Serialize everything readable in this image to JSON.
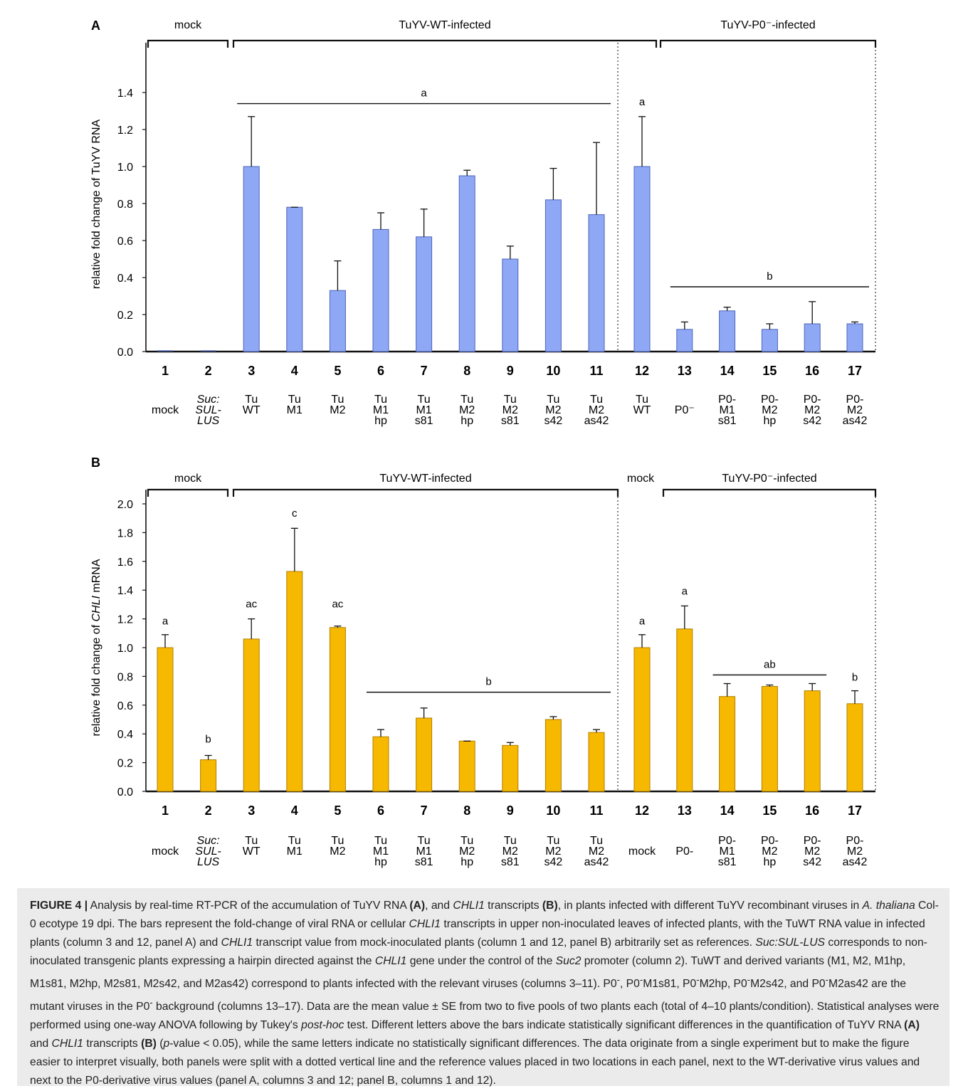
{
  "caption": {
    "html": "<b>FIGURE 4 |</b> Analysis by real-time RT-PCR of the accumulation of TuYV RNA <b>(A)</b>, and <i>CHLI1</i> transcripts <b>(B)</b>, in plants infected with different TuYV recombinant viruses in <i>A. thaliana</i> Col-0 ecotype 19 dpi. The bars represent the fold-change of viral RNA or cellular <i>CHLI1</i> transcripts in upper non-inoculated leaves of infected plants, with the TuWT RNA value in infected plants (column 3 and 12, panel A) and <i>CHLI1</i> transcript value from mock-inoculated plants (column 1 and 12, panel B) arbitrarily set as references. <i>Suc:SUL-LUS</i> corresponds to non-inoculated transgenic plants expressing a hairpin directed against the <i>CHLI1</i> gene under the control of the <i>Suc2</i> promoter (column 2). TuWT and derived variants (M1, M2, M1hp, M1s81, M2hp, M2s81, M2s42, and M2as42) correspond to plants infected with the relevant viruses (columns 3–11). P0<sup>-</sup>, P0<sup>-</sup>M1s81, P0<sup>-</sup>M2hp, P0<sup>-</sup>M2s42, and P0<sup>-</sup>M2as42 are the mutant viruses in the P0<sup>-</sup> background (columns 13–17). Data are the mean value ± SE from two to five pools of two plants each (total of 4–10 plants/condition). Statistical analyses were performed using one-way ANOVA following by Tukey's <i>post-hoc</i> test. Different letters above the bars indicate statistically significant differences in the quantification of TuYV RNA <b>(A)</b> and <i>CHLI1</i> transcripts <b>(B)</b> (<i>p</i>-value &lt; 0.05), while the same letters indicate no statistically significant differences. The data originate from a single experiment but to make the figure easier to interpret visually, both panels were split with a dotted vertical line and the reference values placed in two locations in each panel, next to the WT-derivative virus values and next to the P0-derivative virus values (panel A, columns 3 and 12; panel B, columns 1 and 12)."
  },
  "chart_data": [
    {
      "panel": "A",
      "type": "bar",
      "ylabel": "relative fold change of TuYV RNA",
      "ylim": [
        0,
        1.6
      ],
      "yticks": [
        "0.0",
        "0.2",
        "0.4",
        "0.6",
        "0.8",
        "1.0",
        "1.2",
        "1.4"
      ],
      "bar_color": "#8fa8f5",
      "bar_stroke": "#4d64b8",
      "numbers": [
        "1",
        "2",
        "3",
        "4",
        "5",
        "6",
        "7",
        "8",
        "9",
        "10",
        "11",
        "12",
        "13",
        "14",
        "15",
        "16",
        "17"
      ],
      "labels": [
        [
          "mock"
        ],
        [
          "Suc:",
          "SUL-",
          "LUS"
        ],
        [
          "Tu",
          "WT"
        ],
        [
          "Tu",
          "M1"
        ],
        [
          "Tu",
          "M2"
        ],
        [
          "Tu",
          "M1",
          "hp"
        ],
        [
          "Tu",
          "M1",
          "s81"
        ],
        [
          "Tu",
          "M2",
          "hp"
        ],
        [
          "Tu",
          "M2",
          "s81"
        ],
        [
          "Tu",
          "M2",
          "s42"
        ],
        [
          "Tu",
          "M2",
          "as42"
        ],
        [
          "Tu",
          "WT"
        ],
        [
          "P0⁻"
        ],
        [
          "P0-",
          "M1",
          "s81"
        ],
        [
          "P0-",
          "M2",
          "hp"
        ],
        [
          "P0-",
          "M2",
          "s42"
        ],
        [
          "P0-",
          "M2",
          "as42"
        ]
      ],
      "values": [
        0.0,
        0.0,
        1.0,
        0.78,
        0.33,
        0.66,
        0.62,
        0.95,
        0.5,
        0.82,
        0.74,
        1.0,
        0.12,
        0.22,
        0.12,
        0.15,
        0.15
      ],
      "errors": [
        0.0,
        0.0,
        0.27,
        0.0,
        0.16,
        0.09,
        0.15,
        0.03,
        0.07,
        0.17,
        0.39,
        0.27,
        0.04,
        0.02,
        0.03,
        0.12,
        0.01
      ],
      "groups": [
        {
          "label": "mock",
          "from": 1,
          "to": 2
        },
        {
          "label": "TuYV-WT-infected",
          "from": 3,
          "to": 11
        },
        {
          "label": "TuYV-P0⁻-infected",
          "from": 13,
          "to": 17
        }
      ],
      "significance": [
        {
          "letter": "a",
          "from": 3,
          "to": 11,
          "y": 1.34
        },
        {
          "letter": "a",
          "from": 12,
          "to": 12,
          "y": 1.33
        },
        {
          "letter": "b",
          "from": 13,
          "to": 17,
          "y": 0.35
        }
      ]
    },
    {
      "panel": "B",
      "type": "bar",
      "ylabel": "relative fold change of CHLI mRNA",
      "ylim": [
        0,
        2.0
      ],
      "yticks": [
        "0.0",
        "0.2",
        "0.4",
        "0.6",
        "0.8",
        "1.0",
        "1.2",
        "1.4",
        "1.6",
        "1.8",
        "2.0"
      ],
      "bar_color": "#f7b800",
      "bar_stroke": "#b07f00",
      "numbers": [
        "1",
        "2",
        "3",
        "4",
        "5",
        "6",
        "7",
        "8",
        "9",
        "10",
        "11",
        "12",
        "13",
        "14",
        "15",
        "16",
        "17"
      ],
      "labels": [
        [
          "mock"
        ],
        [
          "Suc:",
          "SUL-",
          "LUS"
        ],
        [
          "Tu",
          "WT"
        ],
        [
          "Tu",
          "M1"
        ],
        [
          "Tu",
          "M2"
        ],
        [
          "Tu",
          "M1",
          "hp"
        ],
        [
          "Tu",
          "M1",
          "s81"
        ],
        [
          "Tu",
          "M2",
          "hp"
        ],
        [
          "Tu",
          "M2",
          "s81"
        ],
        [
          "Tu",
          "M2",
          "s42"
        ],
        [
          "Tu",
          "M2",
          "as42"
        ],
        [
          "mock"
        ],
        [
          "P0-"
        ],
        [
          "P0-",
          "M1",
          "s81"
        ],
        [
          "P0-",
          "M2",
          "hp"
        ],
        [
          "P0-",
          "M2",
          "s42"
        ],
        [
          "P0-",
          "M2",
          "as42"
        ]
      ],
      "values": [
        1.0,
        0.22,
        1.06,
        1.53,
        1.14,
        0.38,
        0.51,
        0.35,
        0.32,
        0.5,
        0.41,
        1.0,
        1.13,
        0.66,
        0.73,
        0.7,
        0.61
      ],
      "errors": [
        0.09,
        0.03,
        0.14,
        0.3,
        0.01,
        0.05,
        0.07,
        0.0,
        0.02,
        0.02,
        0.02,
        0.09,
        0.16,
        0.09,
        0.01,
        0.05,
        0.09
      ],
      "groups": [
        {
          "label": "mock",
          "from": 1,
          "to": 2
        },
        {
          "label": "TuYV-WT-infected",
          "from": 3,
          "to": 11
        },
        {
          "label": "mock",
          "from": 12,
          "to": 12,
          "bracket": false
        },
        {
          "label": "TuYV-P0⁻-infected",
          "from": 13,
          "to": 17
        }
      ],
      "significance": [
        {
          "letter": "a",
          "from": 1,
          "to": 1,
          "y": 1.16
        },
        {
          "letter": "b",
          "from": 2,
          "to": 2,
          "y": 0.34
        },
        {
          "letter": "ac",
          "from": 3,
          "to": 3,
          "y": 1.28
        },
        {
          "letter": "c",
          "from": 4,
          "to": 4,
          "y": 1.91
        },
        {
          "letter": "ac",
          "from": 5,
          "to": 5,
          "y": 1.28
        },
        {
          "letter": "b",
          "from": 6,
          "to": 11,
          "y": 0.69
        },
        {
          "letter": "a",
          "from": 12,
          "to": 12,
          "y": 1.16
        },
        {
          "letter": "a",
          "from": 13,
          "to": 13,
          "y": 1.37
        },
        {
          "letter": "ab",
          "from": 14,
          "to": 16,
          "y": 0.81
        },
        {
          "letter": "b",
          "from": 17,
          "to": 17,
          "y": 0.77
        }
      ]
    }
  ]
}
